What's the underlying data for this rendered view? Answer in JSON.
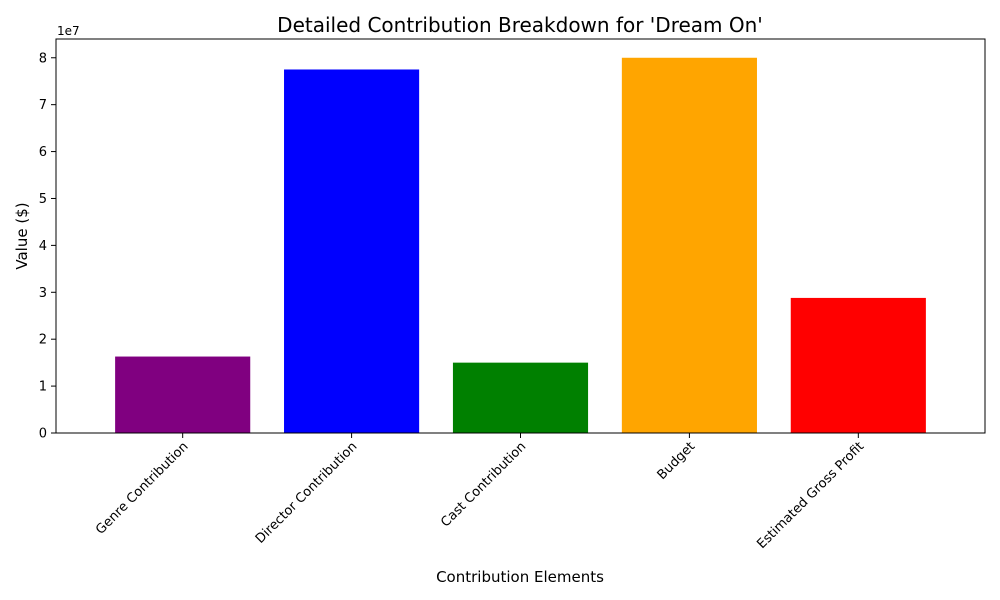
{
  "chart_data": {
    "type": "bar",
    "title": "Detailed Contribution Breakdown for 'Dream On'",
    "xlabel": "Contribution Elements",
    "ylabel": "Value ($)",
    "y_offset_label": "1e7",
    "y_scale": 10000000,
    "ylim": [
      0,
      84000000
    ],
    "y_ticks": [
      0,
      10000000,
      20000000,
      30000000,
      40000000,
      50000000,
      60000000,
      70000000,
      80000000
    ],
    "y_tick_labels": [
      "0",
      "1",
      "2",
      "3",
      "4",
      "5",
      "6",
      "7",
      "8"
    ],
    "grid": false,
    "categories": [
      "Genre Contribution",
      "Director Contribution",
      "Cast Contribution",
      "Budget",
      "Estimated Gross Profit"
    ],
    "values": [
      16300000,
      77500000,
      15000000,
      80000000,
      28800000
    ],
    "colors": [
      "#800080",
      "#0000ff",
      "#008000",
      "#ffa500",
      "#ff0000"
    ]
  }
}
